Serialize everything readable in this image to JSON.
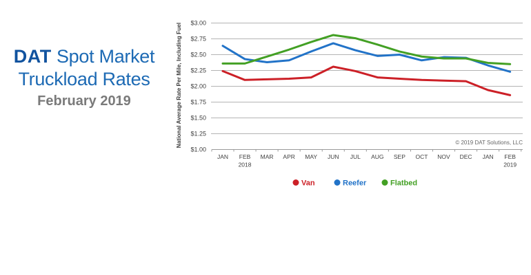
{
  "branding": {
    "logo": "DAT",
    "title_rest": " Spot Market",
    "title_line2": "Truckload Rates",
    "subtitle": "February 2019",
    "logo_color": "#11539f",
    "title_color": "#1d6ab4",
    "subtitle_color": "#7a7a7a"
  },
  "chart_data": {
    "type": "line",
    "title": "",
    "xlabel": "",
    "ylabel": "National Average Rate Per Mile, Including Fuel",
    "ylim": [
      1.0,
      3.0
    ],
    "grid": "horizontal",
    "grid_color": "#b3b3b3",
    "axis_color": "#999999",
    "legend_position": "bottom",
    "copyright": "© 2019 DAT Solutions,  LLC",
    "yticks": [
      {
        "value": 1.0,
        "label": "$1.00"
      },
      {
        "value": 1.25,
        "label": "$1.25"
      },
      {
        "value": 1.5,
        "label": "$1.50"
      },
      {
        "value": 1.75,
        "label": "$1.75"
      },
      {
        "value": 2.0,
        "label": "$2.00"
      },
      {
        "value": 2.25,
        "label": "$2.25"
      },
      {
        "value": 2.5,
        "label": "$2.50"
      },
      {
        "value": 2.75,
        "label": "$2.75"
      },
      {
        "value": 3.0,
        "label": "$3.00"
      }
    ],
    "categories": [
      "JAN",
      "FEB",
      "MAR",
      "APR",
      "MAY",
      "JUN",
      "JUL",
      "AUG",
      "SEP",
      "OCT",
      "NOV",
      "DEC",
      "JAN",
      "FEB"
    ],
    "x_year_labels": [
      {
        "index": 1,
        "label": "2018"
      },
      {
        "index": 13,
        "label": "2019"
      }
    ],
    "series": [
      {
        "name": "Van",
        "color": "#cc2027",
        "values": [
          2.24,
          2.1,
          2.11,
          2.12,
          2.14,
          2.31,
          2.24,
          2.14,
          2.12,
          2.1,
          2.09,
          2.08,
          1.94,
          1.86
        ]
      },
      {
        "name": "Reefer",
        "color": "#2273c8",
        "values": [
          2.64,
          2.43,
          2.38,
          2.41,
          2.55,
          2.68,
          2.57,
          2.48,
          2.5,
          2.41,
          2.46,
          2.45,
          2.33,
          2.23
        ]
      },
      {
        "name": "Flatbed",
        "color": "#43a024",
        "values": [
          2.36,
          2.36,
          2.47,
          2.58,
          2.7,
          2.81,
          2.76,
          2.66,
          2.55,
          2.47,
          2.44,
          2.44,
          2.37,
          2.35
        ]
      }
    ]
  }
}
